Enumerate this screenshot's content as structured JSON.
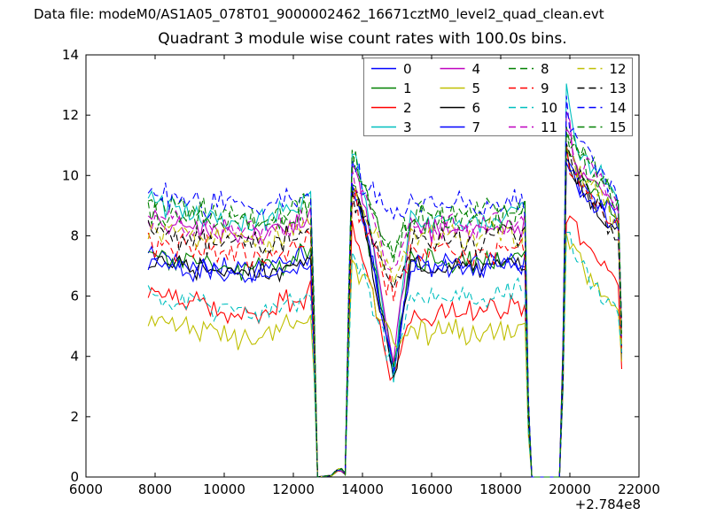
{
  "header": {
    "data_file_label": "Data file: modeM0/AS1A05_078T01_9000002462_16671cztM0_level2_quad_clean.evt"
  },
  "chart_data": {
    "type": "line",
    "title": "Quadrant 3 module wise count rates with 100.0s bins.",
    "xlabel": "",
    "ylabel": "",
    "x_offset_label": "+2.784e8",
    "xlim": [
      6000,
      22000
    ],
    "ylim": [
      0,
      14
    ],
    "xticks": [
      6000,
      8000,
      10000,
      12000,
      14000,
      16000,
      18000,
      20000,
      22000
    ],
    "yticks": [
      0,
      2,
      4,
      6,
      8,
      10,
      12,
      14
    ],
    "grid": false,
    "bin_size_s": 100,
    "legend_position": "upper center",
    "legend_columns": 4,
    "x_start": 7800,
    "x_end": 21500,
    "x_step": 100,
    "gaps": [
      [
        12660,
        13540
      ],
      [
        18830,
        19760
      ]
    ],
    "noise_seed": 42,
    "anchor_x": [
      7800,
      8800,
      9800,
      11000,
      12100,
      12560,
      12660,
      13100,
      13350,
      13540,
      13650,
      14100,
      14900,
      15400,
      16300,
      17300,
      18200,
      18720,
      18830,
      19760,
      19880,
      20150,
      20700,
      21250,
      21430,
      21500
    ],
    "series": [
      {
        "name": "0",
        "color": "#0000ff",
        "dash": false,
        "noise": 0.5,
        "anchor_y": [
          7.4,
          7.2,
          7.0,
          6.9,
          7.2,
          7.4,
          0,
          0.05,
          0.3,
          0.05,
          9.8,
          8.3,
          3.6,
          7.1,
          7.1,
          7.0,
          7.1,
          7.2,
          0,
          0,
          10.9,
          10.0,
          9.3,
          8.7,
          8.4,
          4.3
        ]
      },
      {
        "name": "1",
        "color": "#008000",
        "dash": false,
        "noise": 0.5,
        "anchor_y": [
          7.45,
          7.25,
          7.05,
          6.95,
          7.25,
          7.5,
          0,
          0.05,
          0.3,
          0.05,
          10.0,
          8.4,
          3.5,
          7.15,
          7.1,
          7.05,
          7.15,
          7.3,
          0,
          0,
          11.0,
          10.1,
          9.4,
          8.8,
          8.5,
          4.4
        ]
      },
      {
        "name": "2",
        "color": "#ff0000",
        "dash": false,
        "noise": 0.55,
        "anchor_y": [
          6.25,
          5.9,
          5.5,
          5.35,
          5.8,
          6.1,
          0,
          0.05,
          0.25,
          0.05,
          8.4,
          7.2,
          3.1,
          5.5,
          5.4,
          5.45,
          5.6,
          5.7,
          0,
          0,
          8.6,
          8.2,
          7.4,
          6.8,
          6.6,
          3.8
        ]
      },
      {
        "name": "3",
        "color": "#00bfbf",
        "dash": false,
        "noise": 0.5,
        "anchor_y": [
          9.2,
          8.8,
          8.5,
          8.4,
          8.9,
          9.5,
          0,
          0.05,
          0.3,
          0.05,
          11.0,
          9.3,
          3.5,
          8.6,
          8.5,
          8.5,
          8.6,
          8.8,
          0,
          0,
          13.3,
          11.0,
          10.3,
          9.6,
          9.2,
          4.4
        ]
      },
      {
        "name": "4",
        "color": "#bf00bf",
        "dash": false,
        "noise": 0.5,
        "anchor_y": [
          8.6,
          8.3,
          8.1,
          8.0,
          8.4,
          8.7,
          0,
          0.05,
          0.3,
          0.05,
          10.5,
          9.0,
          3.7,
          8.3,
          8.2,
          8.2,
          8.3,
          8.4,
          0,
          0,
          12.4,
          10.4,
          9.8,
          9.1,
          8.8,
          4.6
        ]
      },
      {
        "name": "5",
        "color": "#bfbf00",
        "dash": false,
        "noise": 0.55,
        "anchor_y": [
          5.3,
          5.0,
          4.7,
          4.6,
          5.0,
          5.3,
          0,
          0.05,
          0.25,
          0.05,
          7.4,
          6.4,
          4.3,
          4.9,
          4.8,
          4.85,
          5.0,
          5.1,
          0,
          0,
          8.2,
          7.4,
          6.4,
          5.5,
          5.2,
          3.7
        ]
      },
      {
        "name": "6",
        "color": "#000000",
        "dash": false,
        "noise": 0.5,
        "anchor_y": [
          7.2,
          7.0,
          6.85,
          6.75,
          7.05,
          7.3,
          0,
          0.05,
          0.3,
          0.05,
          9.9,
          8.2,
          3.3,
          7.0,
          7.0,
          6.95,
          7.05,
          7.1,
          0,
          0,
          10.8,
          9.8,
          9.0,
          8.2,
          7.9,
          4.2
        ]
      },
      {
        "name": "7",
        "color": "#0000ff",
        "dash": false,
        "noise": 0.5,
        "anchor_y": [
          7.05,
          6.85,
          6.7,
          6.6,
          6.9,
          7.1,
          0,
          0.05,
          0.3,
          0.05,
          9.7,
          8.1,
          3.4,
          6.95,
          6.9,
          6.9,
          7.0,
          7.05,
          0,
          0,
          10.6,
          9.7,
          9.1,
          8.4,
          8.1,
          4.2
        ]
      },
      {
        "name": "8",
        "color": "#008000",
        "dash": true,
        "noise": 0.6,
        "anchor_y": [
          9.05,
          8.8,
          8.6,
          8.55,
          8.9,
          9.1,
          0,
          0.05,
          0.3,
          0.05,
          11.15,
          9.4,
          7.4,
          8.8,
          8.75,
          8.8,
          8.85,
          8.9,
          0,
          0,
          11.8,
          11.0,
          10.2,
          9.3,
          9.0,
          5.0
        ]
      },
      {
        "name": "9",
        "color": "#ff0000",
        "dash": true,
        "noise": 0.6,
        "anchor_y": [
          7.75,
          7.6,
          7.45,
          7.4,
          7.6,
          7.8,
          0,
          0.05,
          0.3,
          0.05,
          9.3,
          8.3,
          5.9,
          7.5,
          7.5,
          7.45,
          7.55,
          7.6,
          0,
          0,
          10.7,
          9.9,
          9.2,
          8.5,
          8.2,
          4.5
        ]
      },
      {
        "name": "10",
        "color": "#00bfbf",
        "dash": true,
        "noise": 0.55,
        "anchor_y": [
          5.9,
          5.75,
          5.6,
          5.55,
          5.8,
          6.0,
          0,
          0.05,
          0.25,
          0.05,
          7.2,
          6.5,
          3.5,
          5.95,
          5.9,
          5.95,
          6.05,
          6.1,
          0,
          0,
          8.6,
          7.3,
          6.4,
          5.8,
          5.6,
          3.9
        ]
      },
      {
        "name": "11",
        "color": "#bf00bf",
        "dash": true,
        "noise": 0.6,
        "anchor_y": [
          8.55,
          8.35,
          8.2,
          8.15,
          8.5,
          8.7,
          0,
          0.05,
          0.3,
          0.05,
          10.3,
          9.0,
          6.8,
          8.35,
          8.3,
          8.3,
          8.4,
          8.5,
          0,
          0,
          11.9,
          10.6,
          9.9,
          9.0,
          8.7,
          4.8
        ]
      },
      {
        "name": "12",
        "color": "#bfbf00",
        "dash": true,
        "noise": 0.6,
        "anchor_y": [
          8.25,
          8.05,
          7.9,
          7.85,
          8.15,
          8.35,
          0,
          0.05,
          0.3,
          0.05,
          9.9,
          8.7,
          6.5,
          8.05,
          8.0,
          8.0,
          8.1,
          8.2,
          0,
          0,
          11.3,
          10.2,
          9.5,
          8.7,
          8.4,
          4.7
        ]
      },
      {
        "name": "13",
        "color": "#000000",
        "dash": true,
        "noise": 0.6,
        "anchor_y": [
          8.2,
          8.0,
          7.8,
          7.7,
          7.95,
          8.1,
          0,
          0.05,
          0.3,
          0.05,
          9.6,
          8.5,
          6.2,
          7.85,
          7.8,
          7.8,
          7.9,
          8.0,
          0,
          0,
          11.0,
          10.0,
          9.1,
          8.1,
          7.8,
          4.6
        ]
      },
      {
        "name": "14",
        "color": "#0000ff",
        "dash": true,
        "noise": 0.6,
        "anchor_y": [
          9.35,
          9.15,
          9.0,
          8.95,
          9.3,
          9.5,
          0,
          0.05,
          0.3,
          0.05,
          10.6,
          9.6,
          8.6,
          9.05,
          9.0,
          9.05,
          9.1,
          9.2,
          0,
          0,
          12.3,
          11.2,
          10.5,
          9.6,
          9.3,
          5.2
        ]
      },
      {
        "name": "15",
        "color": "#008000",
        "dash": true,
        "noise": 0.6,
        "anchor_y": [
          8.85,
          8.65,
          8.5,
          8.45,
          8.8,
          9.0,
          0,
          0.05,
          0.3,
          0.05,
          11.0,
          9.3,
          7.2,
          8.6,
          8.55,
          8.6,
          8.7,
          8.75,
          0,
          0,
          11.6,
          10.8,
          10.0,
          9.2,
          8.9,
          4.9
        ]
      }
    ]
  }
}
